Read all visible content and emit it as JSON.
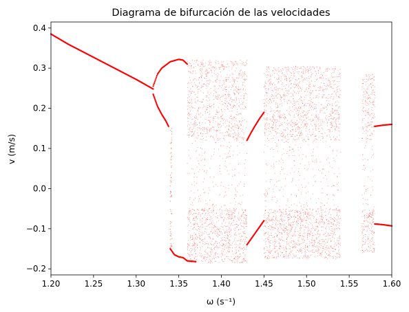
{
  "chart_data": {
    "type": "scatter",
    "title": "Diagrama de bifurcación de las velocidades",
    "xlabel": "ω (s⁻¹)",
    "ylabel": "v (m/s)",
    "xlim": [
      1.2,
      1.6
    ],
    "ylim": [
      -0.215,
      0.415
    ],
    "x_ticks": [
      "1.20",
      "1.25",
      "1.30",
      "1.35",
      "1.40",
      "1.45",
      "1.50",
      "1.55",
      "1.60"
    ],
    "x_tick_values": [
      1.2,
      1.25,
      1.3,
      1.35,
      1.4,
      1.45,
      1.5,
      1.55,
      1.6
    ],
    "y_ticks": [
      "−0.2",
      "−0.1",
      "0.0",
      "0.1",
      "0.2",
      "0.3",
      "0.4"
    ],
    "y_tick_values": [
      -0.2,
      -0.1,
      0.0,
      0.1,
      0.2,
      0.3,
      0.4
    ],
    "marker_color": "#ff0000",
    "grid": false,
    "legend": "none",
    "series": [
      {
        "branch": "period-1 upper",
        "x": [
          1.2,
          1.22,
          1.24,
          1.26,
          1.28,
          1.3,
          1.31,
          1.32
        ],
        "y": [
          0.385,
          0.36,
          0.338,
          0.316,
          0.294,
          0.272,
          0.26,
          0.248
        ]
      },
      {
        "branch": "period-2 upper loop",
        "x": [
          1.32,
          1.325,
          1.33,
          1.34,
          1.35,
          1.355,
          1.36
        ],
        "y": [
          0.255,
          0.285,
          0.3,
          0.316,
          0.322,
          0.32,
          0.31
        ]
      },
      {
        "branch": "period-2 lower loop",
        "x": [
          1.32,
          1.325,
          1.33,
          1.335,
          1.338
        ],
        "y": [
          0.235,
          0.205,
          0.185,
          0.168,
          0.155
        ]
      },
      {
        "branch": "period-2 negative",
        "x": [
          1.34,
          1.345,
          1.35,
          1.355,
          1.36,
          1.37
        ],
        "y": [
          -0.15,
          -0.165,
          -0.17,
          -0.172,
          -0.18,
          -0.182
        ]
      },
      {
        "branch": "periodic window 1.43-1.45 upper",
        "x": [
          1.43,
          1.435,
          1.44,
          1.445,
          1.45
        ],
        "y": [
          0.12,
          0.14,
          0.158,
          0.175,
          0.19
        ]
      },
      {
        "branch": "periodic window 1.43-1.45 lower",
        "x": [
          1.43,
          1.435,
          1.44,
          1.445,
          1.45
        ],
        "y": [
          -0.14,
          -0.125,
          -0.11,
          -0.095,
          -0.08
        ]
      },
      {
        "branch": "period-1 right positive",
        "x": [
          1.58,
          1.59,
          1.6
        ],
        "y": [
          0.155,
          0.158,
          0.16
        ]
      },
      {
        "branch": "period-1 right negative",
        "x": [
          1.58,
          1.59,
          1.6
        ],
        "y": [
          -0.088,
          -0.09,
          -0.093
        ]
      }
    ],
    "chaotic_bands": [
      {
        "x_range": [
          1.36,
          1.43
        ],
        "y_range": [
          -0.185,
          0.32
        ]
      },
      {
        "x_range": [
          1.45,
          1.54
        ],
        "y_range": [
          -0.175,
          0.305
        ]
      },
      {
        "x_range": [
          1.565,
          1.58
        ],
        "y_range": [
          -0.16,
          0.285
        ]
      }
    ]
  }
}
